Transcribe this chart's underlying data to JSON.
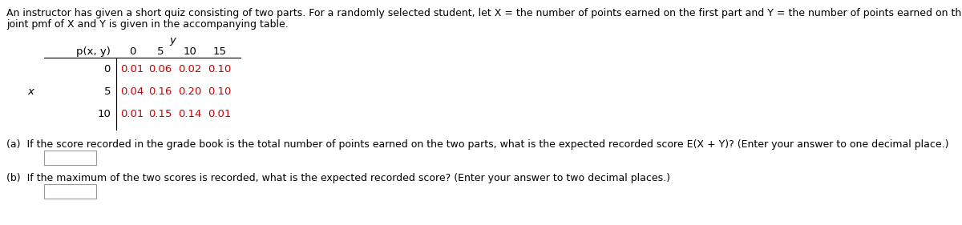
{
  "intro_line1": "An instructor has given a short quiz consisting of two parts. For a randomly selected student, let X = the number of points earned on the first part and Y = the number of points earned on the second part. Suppose that the",
  "intro_line2": "joint pmf of X and Y is given in the accompanying table.",
  "y_label": "y",
  "x_label": "x",
  "col_header_label": "p(x, y)",
  "col_y_values": [
    "0",
    "5",
    "10",
    "15"
  ],
  "row_x_values": [
    "0",
    "5",
    "10"
  ],
  "table_values": [
    [
      "0.01",
      "0.06",
      "0.02",
      "0.10"
    ],
    [
      "0.04",
      "0.16",
      "0.20",
      "0.10"
    ],
    [
      "0.01",
      "0.15",
      "0.14",
      "0.01"
    ]
  ],
  "part_a_text": "(a)  If the score recorded in the grade book is the total number of points earned on the two parts, what is the expected recorded score E(X + Y)? (Enter your answer to one decimal place.)",
  "part_b_text": "(b)  If the maximum of the two scores is recorded, what is the expected recorded score? (Enter your answer to two decimal places.)",
  "value_color": "#cc0000",
  "text_color": "#000000",
  "bg_color": "#ffffff",
  "font_size": 9.0,
  "table_font_size": 9.5
}
